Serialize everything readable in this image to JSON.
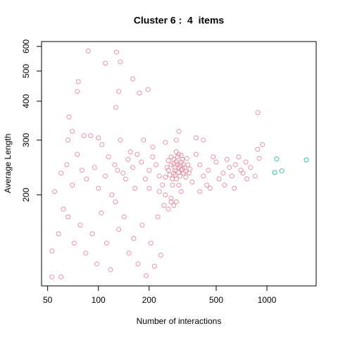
{
  "chart_data": {
    "type": "scatter",
    "title": "Cluster 6 :  4  items",
    "x_label": "Number of interactions",
    "y_label": "Average Length",
    "xlog": true,
    "ylog": true,
    "xlim": [
      46,
      1960
    ],
    "ylim": [
      102,
      622
    ],
    "xticks": [
      50,
      100,
      200,
      500,
      1000
    ],
    "yticks": [
      200,
      300,
      400,
      500,
      600
    ],
    "series": [
      {
        "color": "#E495A5",
        "x": [
          260,
          270,
          280,
          290,
          300,
          310,
          320,
          330,
          280,
          295,
          305,
          275,
          285,
          315,
          325,
          340,
          350,
          265,
          255,
          300,
          290,
          310,
          320,
          270,
          285,
          295,
          305,
          315,
          280,
          300,
          260,
          335,
          345,
          290,
          275,
          300,
          330,
          250,
          310,
          285,
          400,
          450,
          500,
          550,
          600,
          650,
          700,
          750,
          420,
          480,
          520,
          580,
          620,
          680,
          800,
          850,
          900,
          380,
          360,
          440,
          640,
          560,
          220,
          200,
          180,
          160,
          140,
          230,
          210,
          190,
          170,
          150,
          240,
          200,
          230,
          250,
          270,
          290,
          310,
          400,
          460,
          720,
          760,
          940,
          880,
          420,
          380,
          300,
          290,
          250,
          210,
          185,
          55,
          60,
          65,
          70,
          75,
          80,
          85,
          90,
          95,
          100,
          105,
          110,
          115,
          120,
          125,
          130,
          135,
          145,
          155,
          165,
          58,
          62,
          66,
          72,
          78,
          84,
          92,
          98,
          104,
          112,
          118,
          126,
          132,
          142,
          152,
          162,
          172,
          182,
          192,
          205,
          215,
          225,
          235,
          245,
          260,
          270,
          280,
          53,
          60,
          53,
          66,
          70,
          82,
          100,
          87,
          128,
          110,
          135,
          160,
          76,
          197,
          175,
          75,
          132,
          127,
          67,
          883
        ],
        "y": [
          240,
          250,
          235,
          255,
          245,
          240,
          250,
          238,
          260,
          265,
          230,
          225,
          245,
          260,
          245,
          250,
          242,
          232,
          245,
          270,
          225,
          255,
          235,
          265,
          240,
          250,
          248,
          242,
          252,
          236,
          258,
          262,
          235,
          275,
          215,
          215,
          228,
          228,
          268,
          232,
          250,
          240,
          255,
          235,
          245,
          250,
          240,
          255,
          230,
          265,
          225,
          260,
          230,
          265,
          245,
          230,
          262,
          270,
          220,
          215,
          210,
          215,
          250,
          240,
          255,
          245,
          235,
          230,
          265,
          225,
          270,
          260,
          215,
          210,
          205,
          200,
          195,
          190,
          205,
          205,
          210,
          235,
          225,
          290,
          280,
          300,
          305,
          320,
          300,
          295,
          285,
          300,
          205,
          235,
          250,
          215,
          270,
          240,
          225,
          310,
          245,
          210,
          290,
          230,
          265,
          200,
          250,
          240,
          300,
          225,
          275,
          210,
          150,
          180,
          170,
          140,
          160,
          130,
          150,
          120,
          175,
          140,
          115,
          190,
          155,
          170,
          130,
          145,
          120,
          160,
          110,
          140,
          118,
          170,
          128,
          185,
          180,
          190,
          185,
          109,
          109,
          132,
          300,
          320,
          310,
          305,
          580,
          575,
          530,
          535,
          472,
          462,
          436,
          425,
          430,
          430,
          382,
          356,
          368
        ]
      },
      {
        "color": "#39BEB1",
        "x": [
          1143,
          1713,
          1112,
          1225
        ],
        "y": [
          261,
          259,
          236,
          239
        ]
      }
    ]
  }
}
